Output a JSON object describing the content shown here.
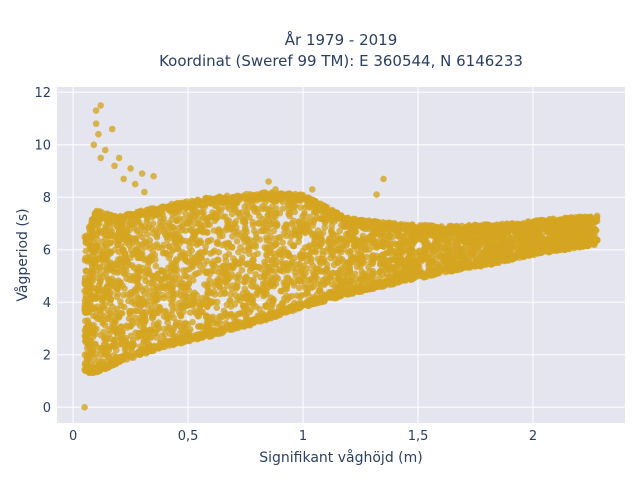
{
  "chart_data": {
    "type": "scatter",
    "title": [
      "År 1979 - 2019",
      "Koordinat (Sweref 99 TM): E 360544, N 6146233"
    ],
    "xlabel": "Signifikant våghöjd (m)",
    "ylabel": "Vågperiod (s)",
    "xlim": [
      -0.07,
      2.4
    ],
    "ylim": [
      -0.6,
      12.2
    ],
    "x_ticks": [
      0,
      0.5,
      1,
      1.5,
      2
    ],
    "x_tick_labels": [
      "0",
      "0,5",
      "1",
      "1,5",
      "2"
    ],
    "y_ticks": [
      0,
      2,
      4,
      6,
      8,
      10,
      12
    ],
    "y_tick_labels": [
      "0",
      "2",
      "4",
      "6",
      "8",
      "10",
      "12"
    ],
    "grid": true,
    "marker_color": "#D4A520",
    "plot_background": "#E5E5F0",
    "outliers": [
      {
        "x": 0.05,
        "y": 0.0
      },
      {
        "x": 0.1,
        "y": 11.3
      },
      {
        "x": 0.12,
        "y": 11.5
      },
      {
        "x": 0.1,
        "y": 10.8
      },
      {
        "x": 0.11,
        "y": 10.4
      },
      {
        "x": 0.09,
        "y": 10.0
      },
      {
        "x": 0.17,
        "y": 10.6
      },
      {
        "x": 0.14,
        "y": 9.8
      },
      {
        "x": 0.12,
        "y": 9.5
      },
      {
        "x": 0.2,
        "y": 9.5
      },
      {
        "x": 0.18,
        "y": 9.2
      },
      {
        "x": 0.25,
        "y": 9.1
      },
      {
        "x": 0.22,
        "y": 8.7
      },
      {
        "x": 0.27,
        "y": 8.5
      },
      {
        "x": 0.3,
        "y": 8.9
      },
      {
        "x": 0.35,
        "y": 8.8
      },
      {
        "x": 0.31,
        "y": 8.2
      },
      {
        "x": 0.85,
        "y": 8.6
      },
      {
        "x": 0.88,
        "y": 8.3
      },
      {
        "x": 1.35,
        "y": 8.7
      },
      {
        "x": 1.32,
        "y": 8.1
      },
      {
        "x": 1.04,
        "y": 8.3
      }
    ],
    "cloud": {
      "x_range": [
        0.05,
        2.28
      ],
      "upper_envelope": [
        [
          0.05,
          6.5
        ],
        [
          0.1,
          7.5
        ],
        [
          0.2,
          7.3
        ],
        [
          0.4,
          7.7
        ],
        [
          0.6,
          8.0
        ],
        [
          0.85,
          8.2
        ],
        [
          1.0,
          8.1
        ],
        [
          1.2,
          7.2
        ],
        [
          1.4,
          7.0
        ],
        [
          1.6,
          6.9
        ],
        [
          1.9,
          7.0
        ],
        [
          2.1,
          7.2
        ],
        [
          2.28,
          7.3
        ]
      ],
      "lower_envelope": [
        [
          0.05,
          1.3
        ],
        [
          0.1,
          1.3
        ],
        [
          0.2,
          1.7
        ],
        [
          0.4,
          2.3
        ],
        [
          0.6,
          2.7
        ],
        [
          0.8,
          3.2
        ],
        [
          1.0,
          3.8
        ],
        [
          1.2,
          4.3
        ],
        [
          1.4,
          4.7
        ],
        [
          1.6,
          5.1
        ],
        [
          1.8,
          5.4
        ],
        [
          2.0,
          5.8
        ],
        [
          2.28,
          6.2
        ]
      ]
    }
  }
}
